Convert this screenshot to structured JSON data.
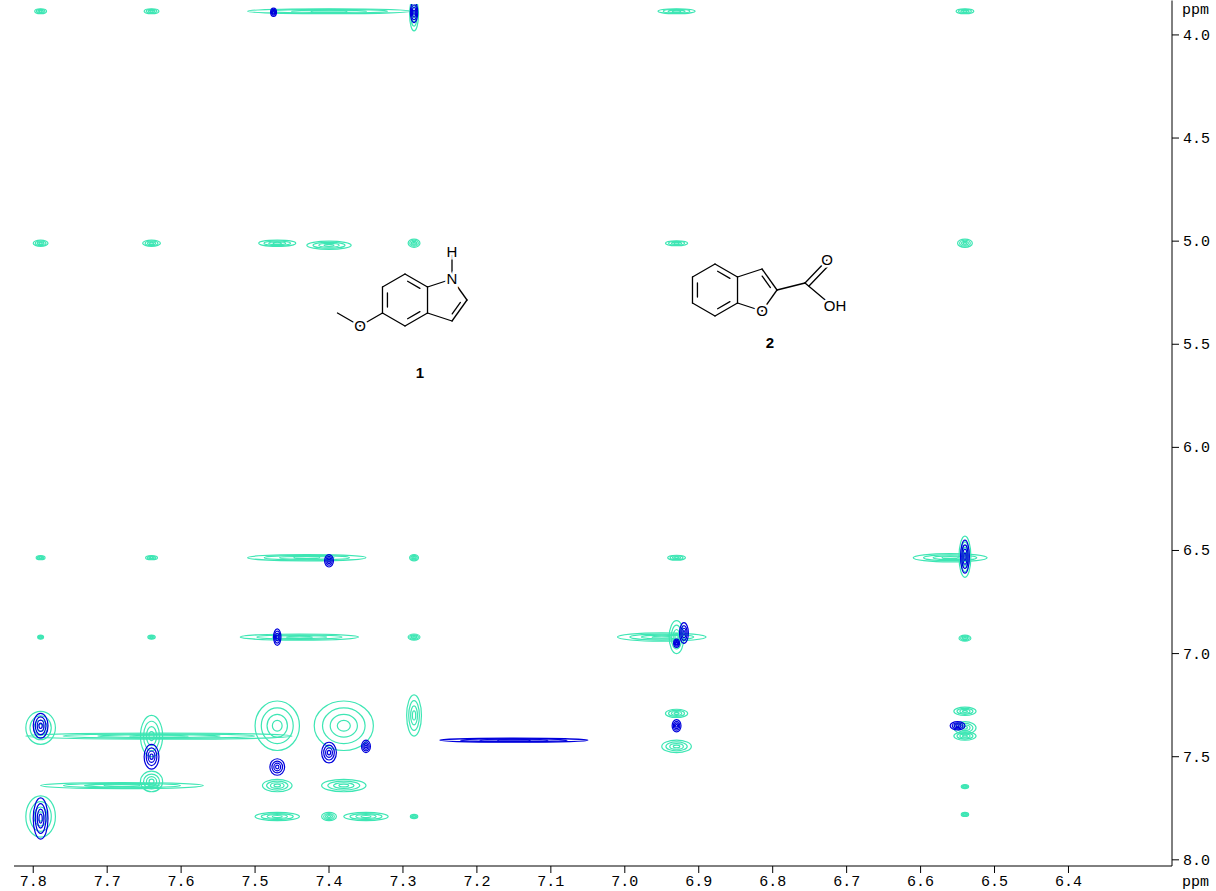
{
  "chart_data": {
    "type": "contour",
    "xlabel": "ppm",
    "ylabel": "ppm",
    "xlim": [
      7.826,
      6.26
    ],
    "ylim": [
      3.85,
      8.03
    ],
    "xticks": [
      7.8,
      7.7,
      7.6,
      7.5,
      7.4,
      7.3,
      7.2,
      7.1,
      {
        "value": 7,
        "label": "7.0"
      },
      6.9,
      6.8,
      6.7,
      6.6,
      6.5,
      6.4
    ],
    "yticks": [
      {
        "value": 4,
        "label": "4.0"
      },
      4.5,
      {
        "value": 5,
        "label": "5.0"
      },
      5.5,
      {
        "value": 6,
        "label": "6.0"
      },
      6.5,
      {
        "value": 7,
        "label": "7.0"
      },
      7.5,
      {
        "value": 8,
        "label": "8.0"
      }
    ],
    "series": [
      {
        "color": "#3ee6b4",
        "x": [
          7.79,
          7.64,
          7.4,
          7.285,
          6.93,
          6.54,
          7.79,
          7.64,
          7.47,
          7.4,
          7.285,
          6.93,
          6.54,
          7.79,
          7.64,
          7.43,
          7.285,
          6.93,
          6.56,
          6.54,
          7.79,
          7.64,
          7.44,
          7.285,
          6.95,
          6.93,
          6.54,
          7.79,
          7.64,
          7.47,
          7.38,
          7.285,
          7.63,
          6.93,
          6.93,
          6.54,
          6.54,
          6.54,
          7.68,
          7.64,
          7.47,
          7.38,
          6.54,
          7.79,
          7.47,
          7.4,
          7.35,
          7.285,
          6.54
        ],
        "y": [
          3.885,
          3.885,
          3.885,
          3.9,
          3.885,
          3.885,
          5.01,
          5.01,
          5.01,
          5.02,
          5.01,
          5.01,
          5.01,
          6.535,
          6.535,
          6.535,
          6.535,
          6.535,
          6.535,
          6.53,
          6.92,
          6.92,
          6.92,
          6.92,
          6.92,
          6.92,
          6.925,
          7.36,
          7.4,
          7.35,
          7.35,
          7.3,
          7.4,
          7.29,
          7.45,
          7.28,
          7.36,
          7.4,
          7.64,
          7.62,
          7.64,
          7.64,
          7.645,
          7.79,
          7.79,
          7.79,
          7.79,
          7.79,
          7.78
        ],
        "dx": [
          0.008,
          0.01,
          0.11,
          0.006,
          0.025,
          0.012,
          0.01,
          0.012,
          0.025,
          0.03,
          0.008,
          0.015,
          0.01,
          0.006,
          0.008,
          0.08,
          0.006,
          0.012,
          0.05,
          0.008,
          0.004,
          0.005,
          0.08,
          0.008,
          0.06,
          0.01,
          0.008,
          0.02,
          0.015,
          0.03,
          0.04,
          0.01,
          0.18,
          0.015,
          0.02,
          0.015,
          0.015,
          0.015,
          0.11,
          0.015,
          0.02,
          0.03,
          0.005,
          0.02,
          0.03,
          0.01,
          0.03,
          0.005,
          0.005
        ],
        "dy": [
          0.012,
          0.012,
          0.012,
          0.08,
          0.012,
          0.012,
          0.015,
          0.015,
          0.015,
          0.02,
          0.02,
          0.012,
          0.02,
          0.01,
          0.01,
          0.015,
          0.015,
          0.012,
          0.02,
          0.1,
          0.008,
          0.008,
          0.015,
          0.015,
          0.02,
          0.08,
          0.015,
          0.08,
          0.1,
          0.12,
          0.12,
          0.1,
          0.015,
          0.02,
          0.03,
          0.02,
          0.03,
          0.02,
          0.015,
          0.05,
          0.03,
          0.03,
          0.01,
          0.1,
          0.02,
          0.02,
          0.02,
          0.01,
          0.01
        ]
      },
      {
        "color": "#0000dc",
        "x": [
          7.285,
          7.475,
          7.4,
          7.47,
          6.92,
          6.54,
          6.55,
          7.79,
          7.79,
          7.64,
          7.47,
          7.4,
          7.35,
          7.15,
          6.93,
          6.93
        ],
        "y": [
          3.89,
          3.89,
          6.55,
          6.92,
          6.9,
          6.53,
          7.35,
          7.8,
          7.35,
          7.5,
          7.55,
          7.48,
          7.45,
          7.42,
          7.35,
          6.95
        ],
        "dx": [
          0.005,
          0.004,
          0.006,
          0.005,
          0.006,
          0.006,
          0.01,
          0.01,
          0.01,
          0.01,
          0.01,
          0.01,
          0.006,
          0.1,
          0.006,
          0.004
        ],
        "dy": [
          0.05,
          0.02,
          0.03,
          0.04,
          0.05,
          0.08,
          0.02,
          0.1,
          0.06,
          0.06,
          0.04,
          0.05,
          0.03,
          0.008,
          0.03,
          0.02
        ]
      }
    ]
  },
  "structures": [
    {
      "label": "1",
      "atoms": [
        "H",
        "N",
        "O"
      ]
    },
    {
      "label": "2",
      "atoms": [
        "O",
        "O",
        "OH"
      ]
    }
  ]
}
